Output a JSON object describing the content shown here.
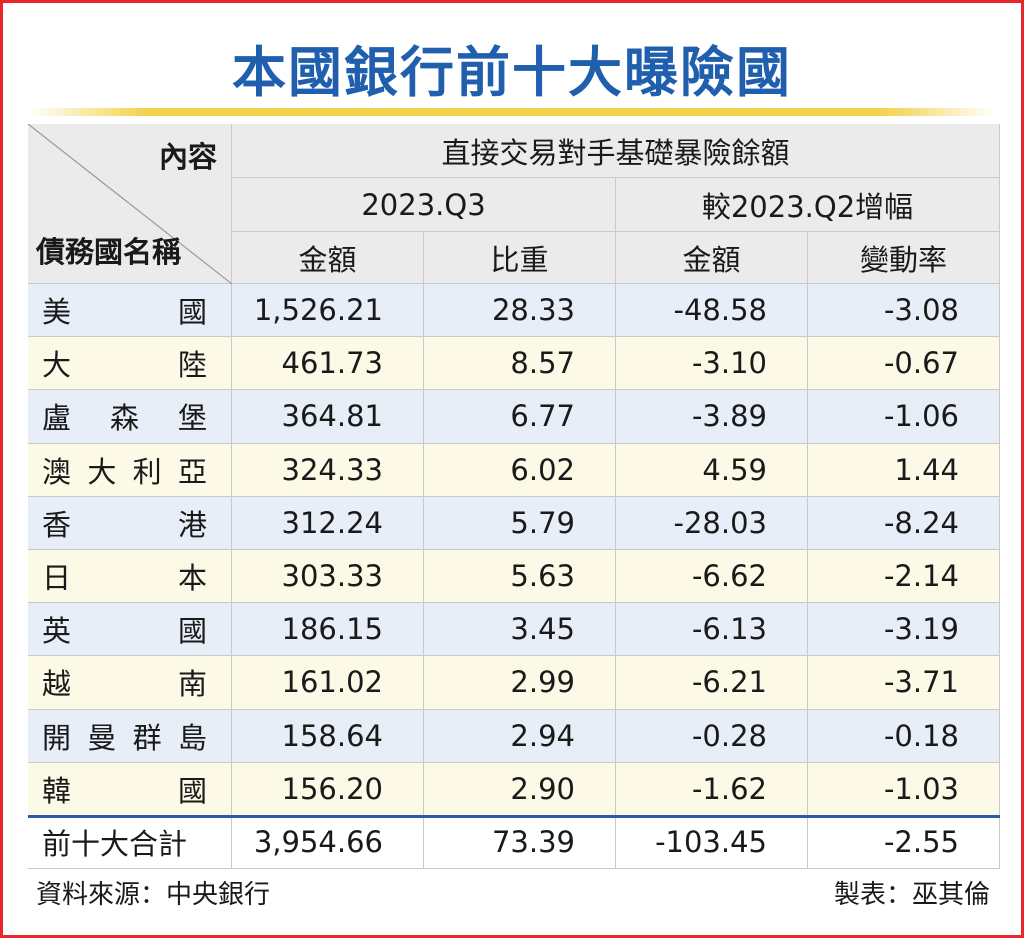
{
  "title": "本國銀行前十大曝險國",
  "header": {
    "content_label": "內容",
    "country_label": "債務國名稱",
    "group_label": "直接交易對手基礎暴險餘額",
    "period_label": "2023.Q3",
    "change_label": "較2023.Q2增幅",
    "amount_label": "金額",
    "share_label": "比重",
    "change_amount_label": "金額",
    "change_rate_label": "變動率"
  },
  "rows": [
    {
      "name": "美國",
      "amount": "1,526.21",
      "share": "28.33",
      "change": "-48.58",
      "rate": "-3.08"
    },
    {
      "name": "大陸",
      "amount": "461.73",
      "share": "8.57",
      "change": "-3.10",
      "rate": "-0.67"
    },
    {
      "name": "盧森堡",
      "amount": "364.81",
      "share": "6.77",
      "change": "-3.89",
      "rate": "-1.06"
    },
    {
      "name": "澳大利亞",
      "amount": "324.33",
      "share": "6.02",
      "change": "4.59",
      "rate": "1.44"
    },
    {
      "name": "香港",
      "amount": "312.24",
      "share": "5.79",
      "change": "-28.03",
      "rate": "-8.24"
    },
    {
      "name": "日本",
      "amount": "303.33",
      "share": "5.63",
      "change": "-6.62",
      "rate": "-2.14"
    },
    {
      "name": "英國",
      "amount": "186.15",
      "share": "3.45",
      "change": "-6.13",
      "rate": "-3.19"
    },
    {
      "name": "越南",
      "amount": "161.02",
      "share": "2.99",
      "change": "-6.21",
      "rate": "-3.71"
    },
    {
      "name": "開曼群島",
      "amount": "158.64",
      "share": "2.94",
      "change": "-0.28",
      "rate": "-0.18"
    },
    {
      "name": "韓國",
      "amount": "156.20",
      "share": "2.90",
      "change": "-1.62",
      "rate": "-1.03"
    }
  ],
  "total": {
    "name": "前十大合計",
    "amount": "3,954.66",
    "share": "73.39",
    "change": "-103.45",
    "rate": "-2.55"
  },
  "source": "資料來源：中央銀行",
  "credit": "製表：巫其倫",
  "colors": {
    "title": "#1f5fae",
    "row_blue": "#e7eef8",
    "row_cream": "#fdf9e7",
    "header": "#ebebeb",
    "border": "#e8262c",
    "accent_rule": "#f2d24a"
  }
}
